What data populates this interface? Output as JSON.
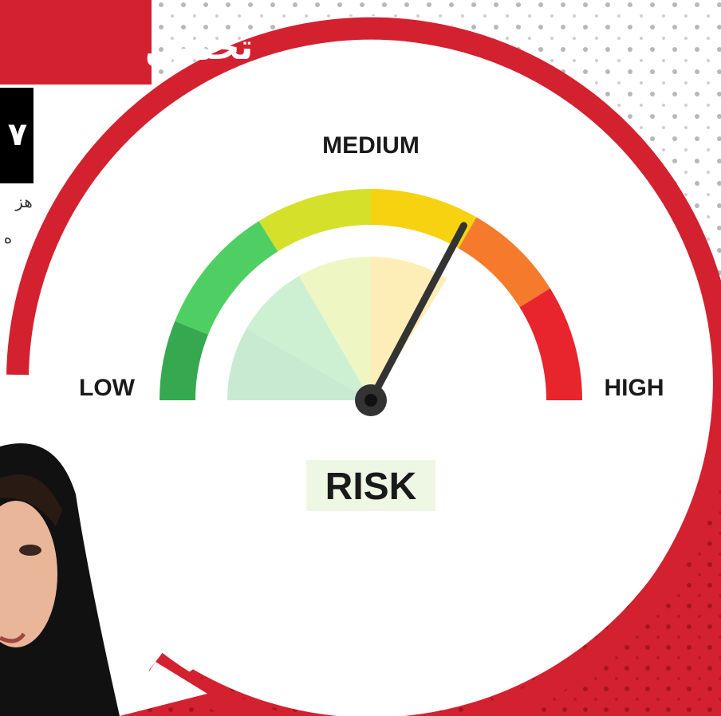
{
  "banner": {
    "title": "تخمین",
    "number": "۷",
    "side_text_1": "هز",
    "side_text_2": "ه"
  },
  "gauge": {
    "top_label": "MEDIUM",
    "left_label": "LOW",
    "right_label": "HIGH",
    "caption": "RISK"
  }
}
